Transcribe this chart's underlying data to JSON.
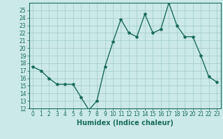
{
  "x": [
    0,
    1,
    2,
    3,
    4,
    5,
    6,
    7,
    8,
    9,
    10,
    11,
    12,
    13,
    14,
    15,
    16,
    17,
    18,
    19,
    20,
    21,
    22,
    23
  ],
  "y": [
    17.5,
    17.0,
    16.0,
    15.2,
    15.2,
    15.2,
    13.5,
    11.8,
    13.0,
    17.5,
    20.8,
    23.8,
    22.0,
    21.5,
    24.5,
    22.0,
    22.5,
    26.0,
    23.0,
    21.5,
    21.5,
    19.0,
    16.2,
    15.5
  ],
  "line_color": "#1a6b5a",
  "marker": "*",
  "marker_size": 3,
  "bg_color": "#cbe9e9",
  "grid_color": "#a0c8c8",
  "xlabel": "Humidex (Indice chaleur)",
  "ylim": [
    12,
    26
  ],
  "xlim": [
    -0.5,
    23.5
  ],
  "yticks": [
    12,
    13,
    14,
    15,
    16,
    17,
    18,
    19,
    20,
    21,
    22,
    23,
    24,
    25
  ],
  "xticks": [
    0,
    1,
    2,
    3,
    4,
    5,
    6,
    7,
    8,
    9,
    10,
    11,
    12,
    13,
    14,
    15,
    16,
    17,
    18,
    19,
    20,
    21,
    22,
    23
  ],
  "xlabel_fontsize": 7,
  "tick_fontsize": 5.5,
  "line_width": 1.0
}
